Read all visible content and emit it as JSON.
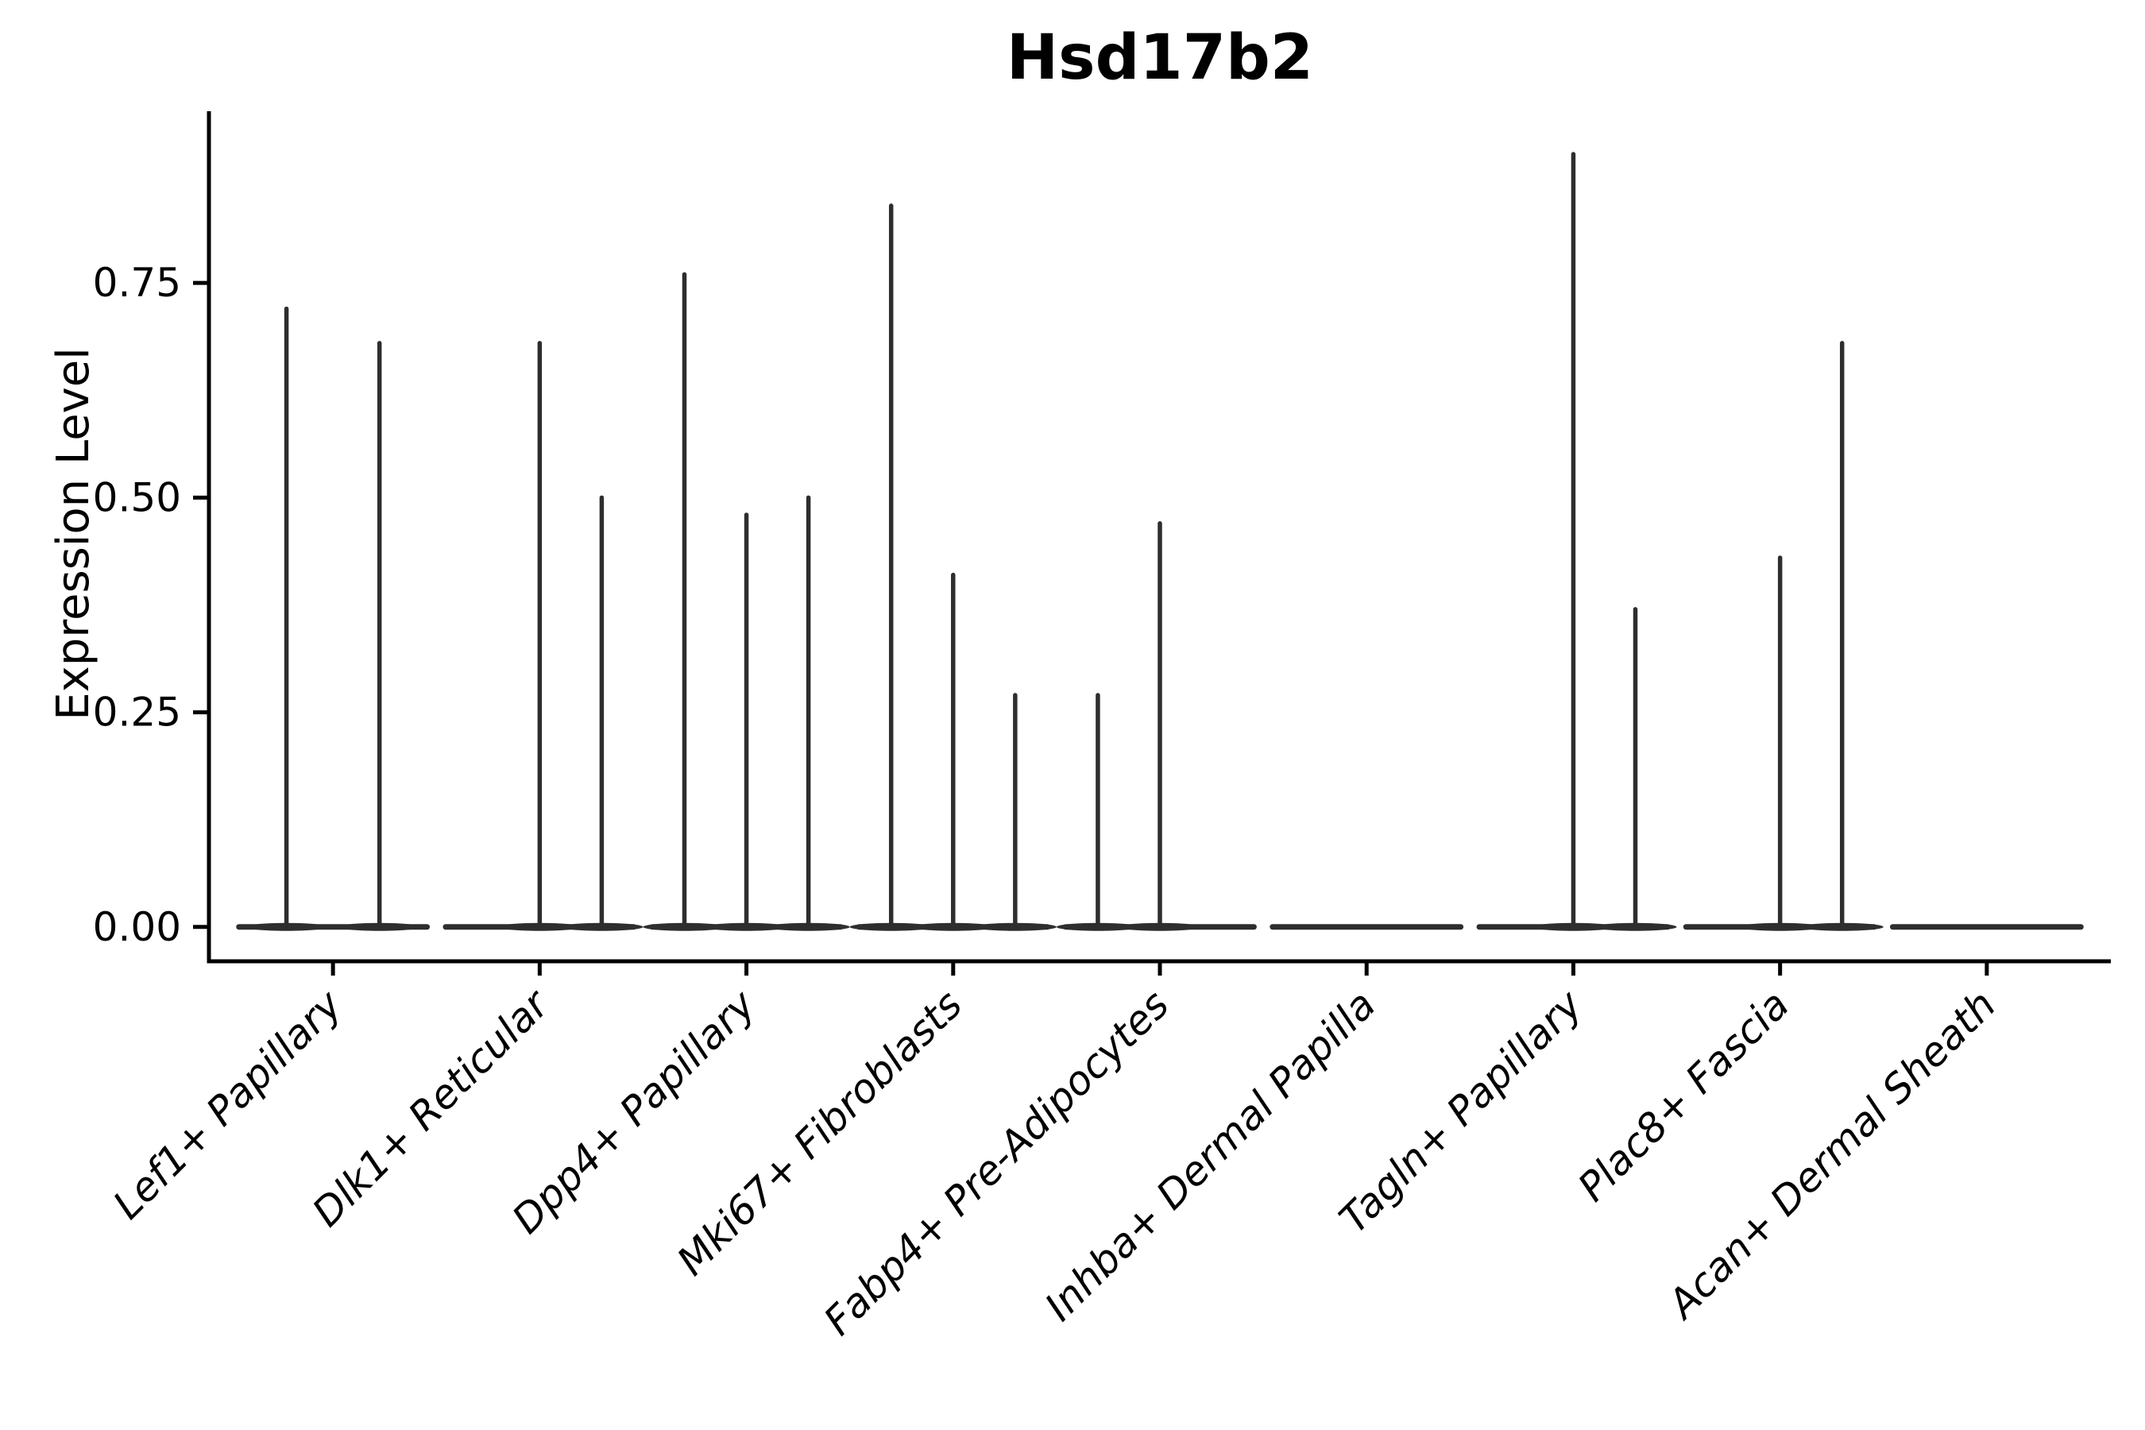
{
  "chart_data": {
    "type": "violin",
    "title": "Hsd17b2",
    "xlabel": "",
    "ylabel": "Expression Level",
    "ylim": [
      -0.04,
      0.95
    ],
    "grid": false,
    "legend": "none",
    "x_tick_angle": 45,
    "yticks": [
      {
        "value": 0.0,
        "label": "0.00"
      },
      {
        "value": 0.25,
        "label": "0.25"
      },
      {
        "value": 0.5,
        "label": "0.50"
      },
      {
        "value": 0.75,
        "label": "0.75"
      }
    ],
    "categories": [
      {
        "label": "Lef1+ Papillary",
        "violin_peaks": [
          0.72,
          0.68
        ]
      },
      {
        "label": "Dlk1+ Reticular",
        "violin_peaks": [
          0,
          0.68,
          0.5
        ]
      },
      {
        "label": "Dpp4+ Papillary",
        "violin_peaks": [
          0.76,
          0.48,
          0.5
        ]
      },
      {
        "label": "Mki67+ Fibroblasts",
        "violin_peaks": [
          0.84,
          0.41,
          0.27
        ]
      },
      {
        "label": "Fabp4+ Pre-Adipocytes",
        "violin_peaks": [
          0.27,
          0.47,
          0
        ]
      },
      {
        "label": "Inhba+ Dermal Papilla",
        "violin_peaks": [
          0,
          0,
          0
        ]
      },
      {
        "label": "Tagln+ Papillary",
        "violin_peaks": [
          0,
          0.9,
          0.37
        ]
      },
      {
        "label": "Plac8+ Fascia",
        "violin_peaks": [
          0,
          0.43,
          0.68
        ]
      },
      {
        "label": "Acan+ Dermal Sheath",
        "violin_peaks": [
          0,
          0,
          0
        ]
      }
    ]
  },
  "colors": {
    "background": "#ffffff",
    "violin_stroke": "#2e2e2e",
    "axis": "#000000",
    "text": "#000000"
  }
}
